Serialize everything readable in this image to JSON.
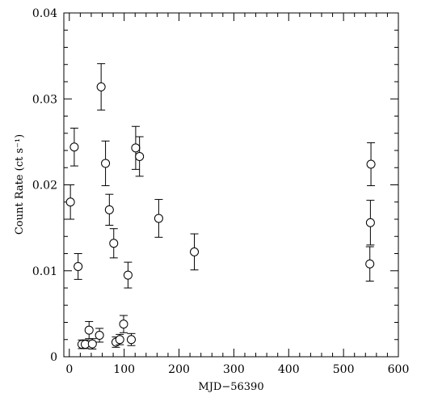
{
  "chart_data": {
    "type": "scatter",
    "title": "",
    "xlabel": "MJD−56390",
    "ylabel": "Count Rate (ct s⁻¹)",
    "xlim": [
      -10,
      600
    ],
    "ylim": [
      0,
      0.04
    ],
    "x_ticks": [
      0,
      100,
      200,
      300,
      400,
      500,
      600
    ],
    "x_tick_labels": [
      "0",
      "100",
      "200",
      "300",
      "400",
      "500",
      "600"
    ],
    "y_ticks": [
      0,
      0.01,
      0.02,
      0.03,
      0.04
    ],
    "y_tick_labels": [
      "0",
      "0.01",
      "0.02",
      "0.03",
      "0.04"
    ],
    "grid": false,
    "legend": "none",
    "marker": "open-circle",
    "color": "#000000",
    "points": [
      {
        "x": 2,
        "y": 0.018,
        "err": 0.002
      },
      {
        "x": 9,
        "y": 0.0244,
        "err": 0.0022
      },
      {
        "x": 16,
        "y": 0.0105,
        "err": 0.0015
      },
      {
        "x": 23,
        "y": 0.00145,
        "err": 0.0005
      },
      {
        "x": 29,
        "y": 0.00145,
        "err": 0.0005
      },
      {
        "x": 36,
        "y": 0.0031,
        "err": 0.001
      },
      {
        "x": 42,
        "y": 0.0015,
        "err": 0.0006
      },
      {
        "x": 55,
        "y": 0.0025,
        "err": 0.0008
      },
      {
        "x": 58,
        "y": 0.0314,
        "err": 0.0027
      },
      {
        "x": 66,
        "y": 0.0225,
        "err": 0.0026
      },
      {
        "x": 73,
        "y": 0.0171,
        "err": 0.0018
      },
      {
        "x": 81,
        "y": 0.0132,
        "err": 0.0017
      },
      {
        "x": 85,
        "y": 0.0017,
        "err": 0.0006
      },
      {
        "x": 92,
        "y": 0.002,
        "err": 0.0006
      },
      {
        "x": 99,
        "y": 0.0038,
        "err": 0.001
      },
      {
        "x": 107,
        "y": 0.0095,
        "err": 0.0015
      },
      {
        "x": 113,
        "y": 0.002,
        "err": 0.0007
      },
      {
        "x": 121,
        "y": 0.0243,
        "err": 0.0025
      },
      {
        "x": 128,
        "y": 0.0233,
        "err": 0.0023
      },
      {
        "x": 163,
        "y": 0.0161,
        "err": 0.0022
      },
      {
        "x": 228,
        "y": 0.0122,
        "err": 0.0021
      },
      {
        "x": 548,
        "y": 0.0108,
        "err": 0.002
      },
      {
        "x": 549,
        "y": 0.0156,
        "err": 0.0026
      },
      {
        "x": 550,
        "y": 0.0224,
        "err": 0.0025
      }
    ]
  }
}
